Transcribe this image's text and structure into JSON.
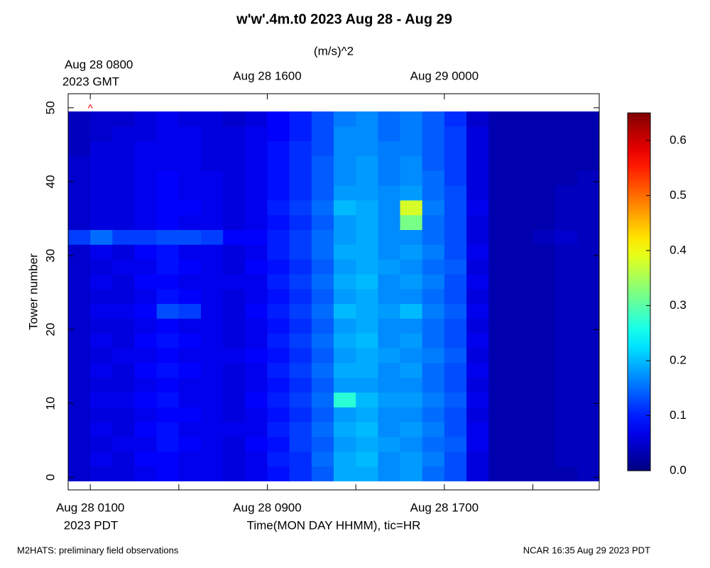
{
  "chart_data": {
    "type": "heatmap",
    "title": "w'w'.4m.t0 2023 Aug 28 - Aug 29",
    "colorbar_label": "(m/s)^2",
    "xlabel": "Time(MON DAY HHMM), tic=HR",
    "ylabel": "Tower number",
    "x_year_label": "2023 PDT",
    "x2_year_label": "2023 GMT",
    "footer_left": "M2HATS: preliminary field observations",
    "footer_right": "NCAR 16:35 Aug 29 2023 PDT",
    "xlim": [
      0,
      24
    ],
    "xticks": [
      {
        "value": 1,
        "label": "Aug 28 0100"
      },
      {
        "value": 5,
        "label": null
      },
      {
        "value": 9,
        "label": "Aug 28 0900"
      },
      {
        "value": 13,
        "label": null
      },
      {
        "value": 17,
        "label": "Aug 28 1700"
      },
      {
        "value": 21,
        "label": null
      }
    ],
    "x2ticks": [
      {
        "value": 1,
        "label": "Aug 28 0800"
      },
      {
        "value": 9,
        "label": "Aug 28 1600"
      },
      {
        "value": 17,
        "label": "Aug 29 0000"
      }
    ],
    "ylim": [
      -1.7,
      51.9
    ],
    "yticks": [
      0,
      10,
      20,
      30,
      40,
      50
    ],
    "clim": [
      0,
      0.65
    ],
    "cticks": [
      {
        "value": 0,
        "label": "0.0"
      },
      0.1,
      0.2,
      0.3,
      0.4,
      0.5,
      0.6
    ],
    "colormap": "jet",
    "annotations": [
      {
        "text": "^",
        "x": 1,
        "y": 50,
        "color": "#ff0000"
      }
    ],
    "xbins": [
      0,
      1,
      2,
      3,
      4,
      5,
      6,
      7,
      8,
      9,
      10,
      11,
      12,
      13,
      14,
      15,
      16,
      17,
      18,
      19,
      20,
      21,
      22,
      23,
      24
    ],
    "ybins": [
      -0.5,
      1.5,
      3.5,
      5.5,
      7.5,
      9.5,
      11.5,
      13.5,
      15.5,
      17.5,
      19.5,
      21.5,
      23.5,
      25.5,
      27.5,
      29.5,
      31.5,
      33.5,
      35.5,
      37.5,
      39.5,
      41.5,
      43.5,
      45.5,
      47.5,
      49.5
    ],
    "values": [
      [
        0.05,
        0.06,
        0.06,
        0.07,
        0.08,
        0.07,
        0.07,
        0.06,
        0.07,
        0.09,
        0.11,
        0.14,
        0.19,
        0.19,
        0.17,
        0.18,
        0.15,
        0.13,
        0.06,
        0.03,
        0.03,
        0.03,
        0.03,
        0.04
      ],
      [
        0.05,
        0.07,
        0.06,
        0.08,
        0.08,
        0.07,
        0.07,
        0.06,
        0.07,
        0.1,
        0.11,
        0.15,
        0.19,
        0.2,
        0.17,
        0.18,
        0.16,
        0.13,
        0.06,
        0.03,
        0.03,
        0.03,
        0.04,
        0.04
      ],
      [
        0.05,
        0.06,
        0.07,
        0.07,
        0.09,
        0.08,
        0.07,
        0.06,
        0.08,
        0.09,
        0.12,
        0.14,
        0.18,
        0.19,
        0.18,
        0.17,
        0.15,
        0.14,
        0.07,
        0.03,
        0.03,
        0.03,
        0.04,
        0.04
      ],
      [
        0.05,
        0.07,
        0.06,
        0.08,
        0.09,
        0.07,
        0.07,
        0.07,
        0.07,
        0.1,
        0.12,
        0.15,
        0.19,
        0.2,
        0.17,
        0.18,
        0.16,
        0.13,
        0.07,
        0.03,
        0.03,
        0.03,
        0.04,
        0.04
      ],
      [
        0.05,
        0.06,
        0.06,
        0.07,
        0.08,
        0.08,
        0.07,
        0.06,
        0.07,
        0.09,
        0.11,
        0.14,
        0.18,
        0.19,
        0.17,
        0.17,
        0.15,
        0.13,
        0.06,
        0.03,
        0.03,
        0.03,
        0.04,
        0.04
      ],
      [
        0.05,
        0.07,
        0.07,
        0.08,
        0.09,
        0.07,
        0.07,
        0.06,
        0.08,
        0.1,
        0.12,
        0.15,
        0.27,
        0.2,
        0.18,
        0.18,
        0.16,
        0.14,
        0.07,
        0.03,
        0.03,
        0.03,
        0.04,
        0.04
      ],
      [
        0.05,
        0.06,
        0.06,
        0.07,
        0.08,
        0.07,
        0.07,
        0.06,
        0.07,
        0.09,
        0.11,
        0.14,
        0.18,
        0.18,
        0.17,
        0.17,
        0.15,
        0.13,
        0.06,
        0.03,
        0.03,
        0.03,
        0.04,
        0.04
      ],
      [
        0.05,
        0.07,
        0.06,
        0.08,
        0.09,
        0.08,
        0.07,
        0.06,
        0.07,
        0.1,
        0.12,
        0.15,
        0.19,
        0.19,
        0.17,
        0.18,
        0.15,
        0.13,
        0.07,
        0.03,
        0.03,
        0.03,
        0.04,
        0.04
      ],
      [
        0.05,
        0.06,
        0.07,
        0.07,
        0.08,
        0.07,
        0.07,
        0.07,
        0.08,
        0.09,
        0.11,
        0.14,
        0.18,
        0.19,
        0.18,
        0.17,
        0.16,
        0.14,
        0.06,
        0.03,
        0.03,
        0.03,
        0.04,
        0.04
      ],
      [
        0.05,
        0.07,
        0.06,
        0.08,
        0.09,
        0.08,
        0.07,
        0.06,
        0.07,
        0.1,
        0.12,
        0.15,
        0.19,
        0.2,
        0.17,
        0.18,
        0.15,
        0.13,
        0.07,
        0.03,
        0.03,
        0.03,
        0.04,
        0.04
      ],
      [
        0.05,
        0.06,
        0.06,
        0.07,
        0.08,
        0.07,
        0.07,
        0.06,
        0.07,
        0.09,
        0.11,
        0.14,
        0.18,
        0.19,
        0.17,
        0.17,
        0.15,
        0.13,
        0.06,
        0.03,
        0.03,
        0.03,
        0.04,
        0.04
      ],
      [
        0.05,
        0.07,
        0.07,
        0.08,
        0.13,
        0.12,
        0.07,
        0.06,
        0.08,
        0.1,
        0.12,
        0.15,
        0.2,
        0.19,
        0.18,
        0.2,
        0.16,
        0.14,
        0.07,
        0.03,
        0.03,
        0.03,
        0.04,
        0.04
      ],
      [
        0.05,
        0.06,
        0.06,
        0.07,
        0.09,
        0.08,
        0.07,
        0.06,
        0.07,
        0.09,
        0.11,
        0.14,
        0.18,
        0.19,
        0.17,
        0.17,
        0.15,
        0.13,
        0.06,
        0.03,
        0.03,
        0.03,
        0.04,
        0.04
      ],
      [
        0.05,
        0.07,
        0.06,
        0.08,
        0.08,
        0.07,
        0.07,
        0.07,
        0.07,
        0.1,
        0.12,
        0.15,
        0.19,
        0.2,
        0.17,
        0.18,
        0.16,
        0.13,
        0.07,
        0.03,
        0.03,
        0.03,
        0.04,
        0.04
      ],
      [
        0.05,
        0.06,
        0.07,
        0.07,
        0.09,
        0.08,
        0.07,
        0.06,
        0.08,
        0.09,
        0.11,
        0.14,
        0.18,
        0.19,
        0.18,
        0.17,
        0.15,
        0.14,
        0.06,
        0.03,
        0.03,
        0.03,
        0.04,
        0.04
      ],
      [
        0.05,
        0.07,
        0.06,
        0.08,
        0.09,
        0.07,
        0.07,
        0.06,
        0.07,
        0.1,
        0.12,
        0.15,
        0.19,
        0.19,
        0.17,
        0.18,
        0.16,
        0.13,
        0.07,
        0.03,
        0.03,
        0.03,
        0.04,
        0.04
      ],
      [
        0.12,
        0.15,
        0.12,
        0.12,
        0.13,
        0.13,
        0.12,
        0.08,
        0.08,
        0.1,
        0.12,
        0.15,
        0.18,
        0.19,
        0.17,
        0.17,
        0.15,
        0.13,
        0.06,
        0.03,
        0.03,
        0.04,
        0.05,
        0.04
      ],
      [
        0.05,
        0.06,
        0.06,
        0.07,
        0.08,
        0.07,
        0.07,
        0.06,
        0.07,
        0.09,
        0.11,
        0.14,
        0.18,
        0.19,
        0.17,
        0.32,
        0.15,
        0.13,
        0.06,
        0.03,
        0.03,
        0.03,
        0.04,
        0.04
      ],
      [
        0.05,
        0.06,
        0.06,
        0.07,
        0.08,
        0.08,
        0.07,
        0.06,
        0.07,
        0.1,
        0.12,
        0.15,
        0.2,
        0.19,
        0.17,
        0.38,
        0.16,
        0.13,
        0.07,
        0.03,
        0.03,
        0.03,
        0.04,
        0.04
      ],
      [
        0.05,
        0.06,
        0.06,
        0.07,
        0.08,
        0.07,
        0.07,
        0.06,
        0.07,
        0.09,
        0.11,
        0.14,
        0.18,
        0.18,
        0.17,
        0.18,
        0.15,
        0.13,
        0.06,
        0.03,
        0.03,
        0.03,
        0.04,
        0.04
      ],
      [
        0.05,
        0.06,
        0.06,
        0.07,
        0.08,
        0.07,
        0.07,
        0.06,
        0.07,
        0.09,
        0.11,
        0.14,
        0.17,
        0.18,
        0.16,
        0.17,
        0.15,
        0.12,
        0.06,
        0.03,
        0.03,
        0.03,
        0.03,
        0.04
      ],
      [
        0.05,
        0.06,
        0.06,
        0.07,
        0.07,
        0.07,
        0.06,
        0.06,
        0.07,
        0.09,
        0.11,
        0.14,
        0.17,
        0.18,
        0.16,
        0.17,
        0.14,
        0.12,
        0.06,
        0.03,
        0.03,
        0.03,
        0.03,
        0.03
      ],
      [
        0.04,
        0.06,
        0.06,
        0.07,
        0.07,
        0.07,
        0.06,
        0.06,
        0.07,
        0.09,
        0.11,
        0.13,
        0.17,
        0.17,
        0.16,
        0.16,
        0.14,
        0.12,
        0.06,
        0.03,
        0.03,
        0.03,
        0.03,
        0.03
      ],
      [
        0.04,
        0.05,
        0.06,
        0.06,
        0.07,
        0.07,
        0.06,
        0.06,
        0.07,
        0.08,
        0.1,
        0.13,
        0.17,
        0.17,
        0.15,
        0.16,
        0.14,
        0.12,
        0.06,
        0.03,
        0.03,
        0.03,
        0.03,
        0.03
      ],
      [
        0.04,
        0.05,
        0.05,
        0.06,
        0.07,
        0.06,
        0.06,
        0.05,
        0.06,
        0.08,
        0.1,
        0.13,
        0.16,
        0.17,
        0.15,
        0.16,
        0.14,
        0.11,
        0.05,
        0.03,
        0.03,
        0.03,
        0.03,
        0.03
      ]
    ]
  }
}
